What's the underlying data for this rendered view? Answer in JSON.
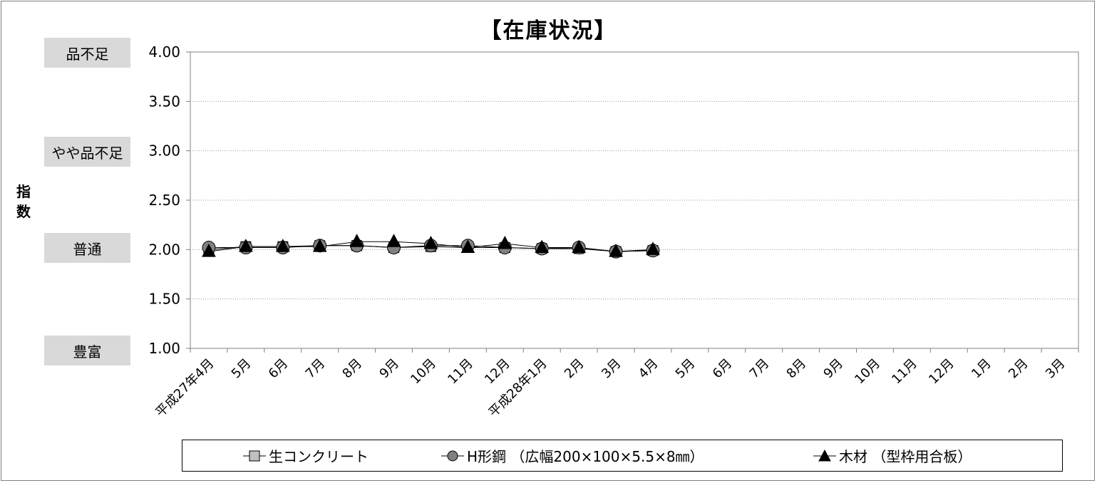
{
  "chart_data": {
    "type": "line",
    "title": "【在庫状況】",
    "ylabel": "指数",
    "ylim": [
      1.0,
      4.0
    ],
    "yticks": [
      "1.00",
      "1.50",
      "2.00",
      "2.50",
      "3.00",
      "3.50",
      "4.00"
    ],
    "y_category_labels": [
      {
        "value": 4.0,
        "label": "品不足"
      },
      {
        "value": 3.0,
        "label": "やや品不足"
      },
      {
        "value": 2.0,
        "label": "普通"
      },
      {
        "value": 1.0,
        "label": "豊富"
      }
    ],
    "categories": [
      "平成27年4月",
      "5月",
      "6月",
      "7月",
      "8月",
      "9月",
      "10月",
      "11月",
      "12月",
      "平成28年1月",
      "2月",
      "3月",
      "4月",
      "5月",
      "6月",
      "7月",
      "8月",
      "9月",
      "10月",
      "11月",
      "12月",
      "1月",
      "2月",
      "3月"
    ],
    "grid": true,
    "legend_position": "bottom",
    "series": [
      {
        "name": "生コンクリート",
        "marker": "square",
        "color": "#c0c0c0",
        "values": [
          2.0,
          2.03,
          2.03,
          2.04,
          2.04,
          2.02,
          2.03,
          2.02,
          2.02,
          2.01,
          2.01,
          1.98,
          1.99,
          null,
          null,
          null,
          null,
          null,
          null,
          null,
          null,
          null,
          null,
          null
        ]
      },
      {
        "name": "H形鋼 （広幅200×100×5.5×8㎜）",
        "marker": "circle",
        "color": "#808080",
        "values": [
          2.02,
          2.02,
          2.02,
          2.04,
          2.04,
          2.02,
          2.04,
          2.04,
          2.02,
          2.01,
          2.02,
          1.98,
          1.99,
          null,
          null,
          null,
          null,
          null,
          null,
          null,
          null,
          null,
          null,
          null
        ]
      },
      {
        "name": "木材 （型枠用合板）",
        "marker": "triangle",
        "color": "#000000",
        "values": [
          1.98,
          2.03,
          2.03,
          2.03,
          2.08,
          2.08,
          2.06,
          2.02,
          2.06,
          2.02,
          2.02,
          1.98,
          2.0,
          null,
          null,
          null,
          null,
          null,
          null,
          null,
          null,
          null,
          null,
          null
        ]
      }
    ]
  }
}
